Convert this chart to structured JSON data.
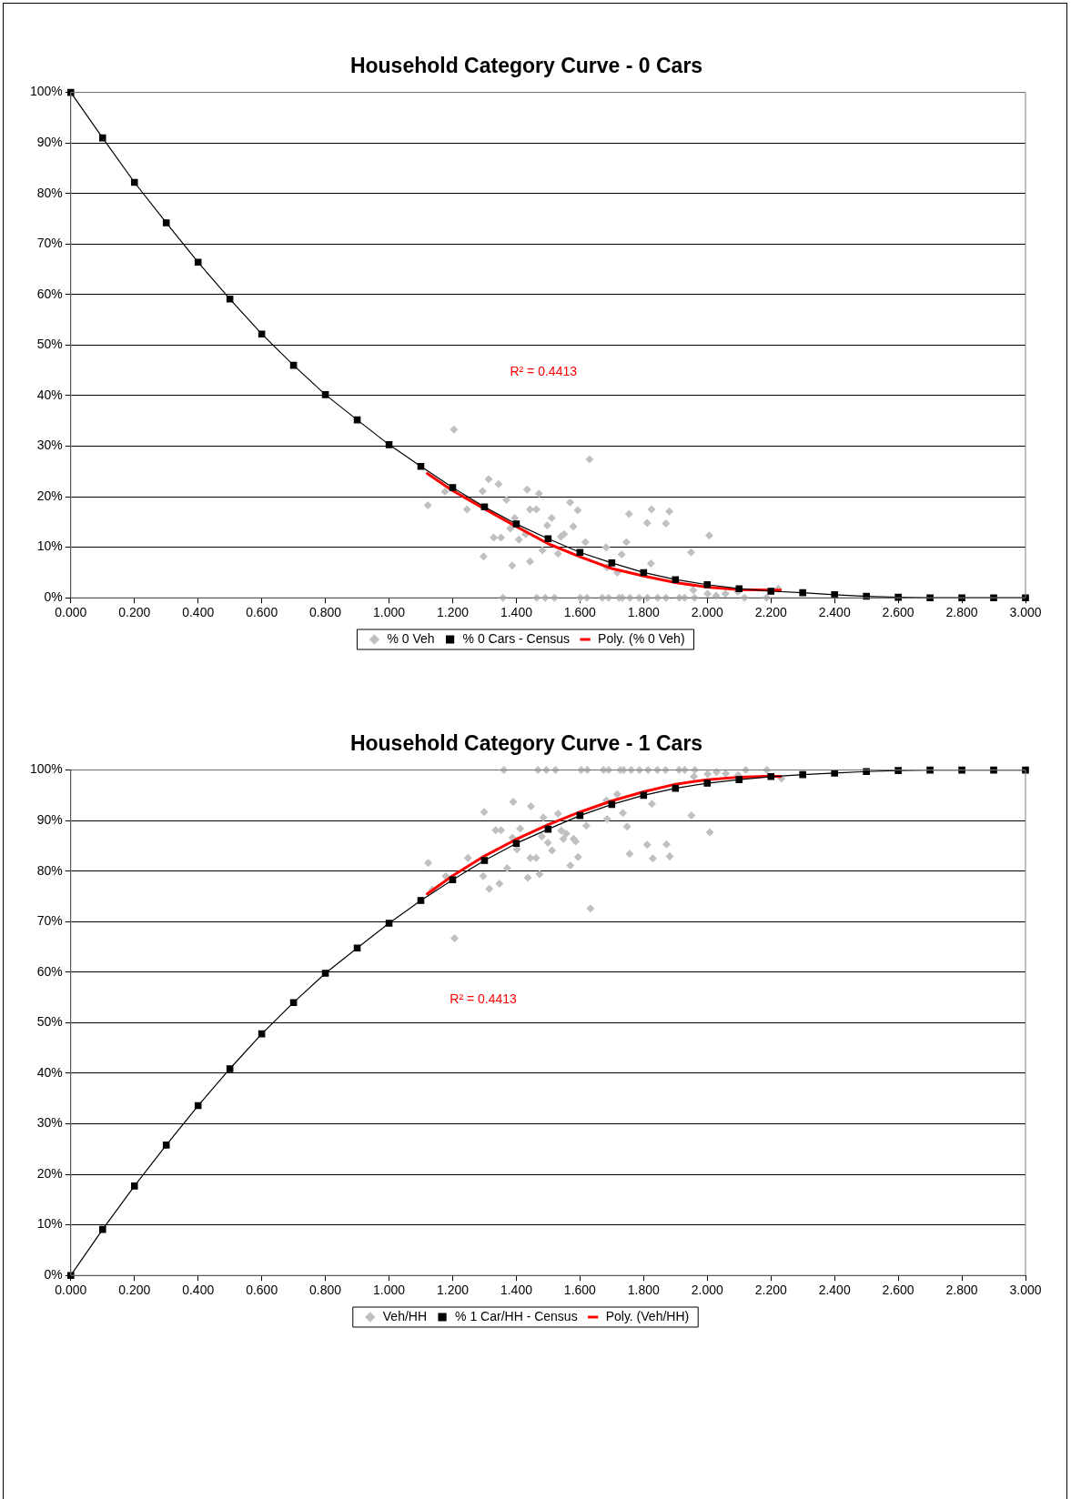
{
  "chart_data": [
    {
      "type": "scatter",
      "title": "Household Category Curve - 0 Cars",
      "xlim": [
        0,
        3
      ],
      "xticks": [
        {
          "value": 0,
          "label": "0.000"
        },
        {
          "value": 0.2,
          "label": "0.200"
        },
        {
          "value": 0.4,
          "label": "0.400"
        },
        {
          "value": 0.6,
          "label": "0.600"
        },
        {
          "value": 0.8,
          "label": "0.800"
        },
        {
          "value": 1,
          "label": "1.000"
        },
        {
          "value": 1.2,
          "label": "1.200"
        },
        {
          "value": 1.4,
          "label": "1.400"
        },
        {
          "value": 1.6,
          "label": "1.600"
        },
        {
          "value": 1.8,
          "label": "1.800"
        },
        {
          "value": 2,
          "label": "2.000"
        },
        {
          "value": 2.2,
          "label": "2.200"
        },
        {
          "value": 2.4,
          "label": "2.400"
        },
        {
          "value": 2.6,
          "label": "2.600"
        },
        {
          "value": 2.8,
          "label": "2.800"
        },
        {
          "value": 3,
          "label": "3.000"
        }
      ],
      "ylim": [
        0,
        100
      ],
      "yticks": [
        {
          "value": 0,
          "label": "0%"
        },
        {
          "value": 10,
          "label": "10%"
        },
        {
          "value": 20,
          "label": "20%"
        },
        {
          "value": 30,
          "label": "30%"
        },
        {
          "value": 40,
          "label": "40%"
        },
        {
          "value": 50,
          "label": "50%"
        },
        {
          "value": 60,
          "label": "60%"
        },
        {
          "value": 70,
          "label": "70%"
        },
        {
          "value": 80,
          "label": "80%"
        },
        {
          "value": 90,
          "label": "90%"
        },
        {
          "value": 100,
          "label": "100%"
        }
      ],
      "grid": "y",
      "legend": "bottom",
      "annotations": [
        "R² = 0.4413"
      ],
      "series": [
        {
          "name": "% 0 Veh",
          "color": "#c0c0c0",
          "marker": "diamond",
          "x": [
            1.204,
            1.63,
            1.122,
            1.176,
            1.245,
            1.294,
            1.313,
            1.344,
            1.369,
            1.297,
            1.329,
            1.352,
            1.387,
            1.395,
            1.381,
            1.408,
            1.434,
            1.443,
            1.463,
            1.471,
            1.429,
            1.443,
            1.482,
            1.497,
            1.511,
            1.531,
            1.54,
            1.55,
            1.569,
            1.593,
            1.579,
            1.617,
            1.682,
            1.685,
            1.717,
            1.731,
            1.746,
            1.754,
            1.811,
            1.825,
            1.823,
            1.87,
            1.881,
            1.949,
            2.006,
            1.956,
            2.001,
            2.028,
            2.057,
            2.096,
            2.223,
            1.358,
            1.464,
            1.491,
            1.52,
            1.601,
            1.622,
            1.67,
            1.69,
            1.723,
            1.733,
            1.757,
            1.786,
            1.812,
            1.844,
            1.87,
            1.912,
            1.929,
            1.96,
            2.117,
            2.186
          ],
          "values": [
            33.3,
            27.4,
            18.3,
            21.0,
            17.5,
            21.1,
            23.5,
            22.5,
            19.4,
            8.2,
            11.9,
            11.9,
            6.4,
            15.8,
            13.7,
            11.5,
            21.4,
            17.5,
            17.5,
            20.6,
            12.6,
            7.2,
            9.4,
            14.3,
            15.8,
            8.7,
            12.1,
            12.6,
            18.9,
            17.3,
            14.1,
            11.0,
            10.0,
            6.0,
            5.0,
            8.6,
            11.0,
            16.6,
            14.8,
            17.5,
            6.8,
            14.7,
            17.1,
            9.0,
            12.3,
            1.5,
            0.8,
            0.4,
            0.8,
            1.2,
            1.8,
            0,
            0,
            0,
            0,
            0,
            0,
            0,
            0,
            0,
            0,
            0,
            0,
            0,
            0,
            0,
            0,
            0,
            0,
            0,
            0
          ]
        },
        {
          "name": "% 0 Cars - Census",
          "type": "line",
          "color": "#000000",
          "marker": "square",
          "x": [
            0,
            0.1,
            0.2,
            0.3,
            0.4,
            0.5,
            0.6,
            0.7,
            0.8,
            0.9,
            1,
            1.1,
            1.2,
            1.3,
            1.4,
            1.5,
            1.6,
            1.7,
            1.8,
            1.9,
            2,
            2.1,
            2.2,
            2.3,
            2.4,
            2.5,
            2.6,
            2.7,
            2.8,
            2.9,
            3
          ],
          "values": [
            100,
            91,
            82.2,
            74.2,
            66.4,
            59.1,
            52.2,
            46.0,
            40.2,
            35.2,
            30.3,
            26.0,
            21.8,
            18.0,
            14.6,
            11.7,
            9.0,
            6.9,
            5.0,
            3.6,
            2.6,
            1.8,
            1.3,
            1.0,
            0.6,
            0.3,
            0.1,
            0,
            0,
            0,
            0
          ]
        },
        {
          "name": "Poly. (% 0 Veh)",
          "type": "line",
          "color": "#ff0000",
          "marker": "none",
          "x": [
            1.12,
            1.2,
            1.3,
            1.4,
            1.5,
            1.6,
            1.7,
            1.8,
            1.9,
            2,
            2.1,
            2.2,
            2.23
          ],
          "values": [
            24.6,
            21.2,
            17.6,
            14.1,
            10.7,
            8.1,
            5.8,
            4.3,
            3.0,
            2.1,
            1.6,
            1.5,
            1.5
          ]
        }
      ]
    },
    {
      "type": "scatter",
      "title": "Household Category Curve - 1 Cars",
      "xlim": [
        0,
        3
      ],
      "xticks": [
        {
          "value": 0,
          "label": "0.000"
        },
        {
          "value": 0.2,
          "label": "0.200"
        },
        {
          "value": 0.4,
          "label": "0.400"
        },
        {
          "value": 0.6,
          "label": "0.600"
        },
        {
          "value": 0.8,
          "label": "0.800"
        },
        {
          "value": 1,
          "label": "1.000"
        },
        {
          "value": 1.2,
          "label": "1.200"
        },
        {
          "value": 1.4,
          "label": "1.400"
        },
        {
          "value": 1.6,
          "label": "1.600"
        },
        {
          "value": 1.8,
          "label": "1.800"
        },
        {
          "value": 2,
          "label": "2.000"
        },
        {
          "value": 2.2,
          "label": "2.200"
        },
        {
          "value": 2.4,
          "label": "2.400"
        },
        {
          "value": 2.6,
          "label": "2.600"
        },
        {
          "value": 2.8,
          "label": "2.800"
        },
        {
          "value": 3,
          "label": "3.000"
        }
      ],
      "ylim": [
        0,
        100
      ],
      "yticks": [
        {
          "value": 0,
          "label": "0%"
        },
        {
          "value": 10,
          "label": "10%"
        },
        {
          "value": 20,
          "label": "20%"
        },
        {
          "value": 30,
          "label": "30%"
        },
        {
          "value": 40,
          "label": "40%"
        },
        {
          "value": 50,
          "label": "50%"
        },
        {
          "value": 60,
          "label": "60%"
        },
        {
          "value": 70,
          "label": "70%"
        },
        {
          "value": 80,
          "label": "80%"
        },
        {
          "value": 90,
          "label": "90%"
        },
        {
          "value": 100,
          "label": "100%"
        }
      ],
      "grid": "y",
      "legend": "bottom",
      "annotations": [
        "R² = 0.4413"
      ],
      "series": [
        {
          "name": "Veh/HH",
          "color": "#c0c0c0",
          "marker": "diamond",
          "x": [
            1.206,
            1.123,
            1.136,
            1.178,
            1.248,
            1.299,
            1.296,
            1.315,
            1.347,
            1.335,
            1.352,
            1.371,
            1.39,
            1.388,
            1.402,
            1.412,
            1.436,
            1.444,
            1.462,
            1.446,
            1.473,
            1.48,
            1.485,
            1.499,
            1.512,
            1.531,
            1.541,
            1.548,
            1.557,
            1.57,
            1.58,
            1.586,
            1.594,
            1.62,
            1.633,
            1.683,
            1.685,
            1.717,
            1.735,
            1.748,
            1.756,
            1.811,
            1.826,
            1.829,
            1.872,
            1.882,
            1.95,
            2.008,
            1.958,
            2.001,
            2.029,
            2.058,
            2.097,
            2.233,
            1.361,
            1.468,
            1.494,
            1.523,
            1.604,
            1.623,
            1.674,
            1.69,
            1.727,
            1.737,
            1.761,
            1.787,
            1.814,
            1.843,
            1.869,
            1.911,
            1.929,
            1.961,
            2.121,
            2.187
          ],
          "values": [
            66.7,
            81.6,
            76.3,
            79.0,
            82.6,
            91.7,
            79.0,
            76.5,
            77.5,
            88.1,
            88.1,
            80.6,
            93.7,
            86.6,
            84.3,
            88.4,
            78.7,
            82.6,
            82.6,
            92.8,
            79.4,
            86.9,
            90.6,
            85.6,
            84.1,
            91.4,
            88.0,
            86.4,
            87.4,
            81.1,
            86.4,
            85.9,
            82.8,
            89.0,
            72.6,
            94.0,
            90.3,
            95.2,
            91.5,
            88.8,
            83.4,
            85.2,
            93.3,
            82.5,
            85.3,
            82.9,
            91.0,
            87.7,
            98.7,
            99.2,
            99.6,
            99.3,
            99.0,
            98.3,
            100,
            100,
            100,
            100,
            100,
            100,
            100,
            100,
            100,
            100,
            100,
            100,
            100,
            100,
            100,
            100,
            100,
            100,
            100,
            100
          ]
        },
        {
          "name": "% 1 Car/HH - Census",
          "type": "line",
          "color": "#000000",
          "marker": "square",
          "x": [
            0,
            0.1,
            0.2,
            0.3,
            0.4,
            0.5,
            0.6,
            0.7,
            0.8,
            0.9,
            1,
            1.1,
            1.2,
            1.3,
            1.4,
            1.5,
            1.6,
            1.7,
            1.8,
            1.9,
            2,
            2.1,
            2.2,
            2.3,
            2.4,
            2.5,
            2.6,
            2.7,
            2.8,
            2.9,
            3
          ],
          "values": [
            0,
            9.1,
            17.7,
            25.8,
            33.6,
            40.9,
            47.8,
            54.0,
            59.8,
            64.8,
            69.7,
            74.2,
            78.3,
            82.1,
            85.5,
            88.3,
            91.0,
            93.2,
            95.0,
            96.4,
            97.4,
            98.1,
            98.7,
            99.1,
            99.4,
            99.7,
            99.9,
            100,
            100,
            100,
            100
          ]
        },
        {
          "name": "Poly. (Veh/HH)",
          "type": "line",
          "color": "#ff0000",
          "marker": "none",
          "x": [
            1.12,
            1.2,
            1.3,
            1.4,
            1.5,
            1.6,
            1.7,
            1.8,
            1.9,
            2,
            2.1,
            2.2,
            2.23
          ],
          "values": [
            75.5,
            79.1,
            83.0,
            86.3,
            89.2,
            91.7,
            93.9,
            95.7,
            97.2,
            98.1,
            98.6,
            98.8,
            98.7
          ]
        }
      ]
    }
  ]
}
